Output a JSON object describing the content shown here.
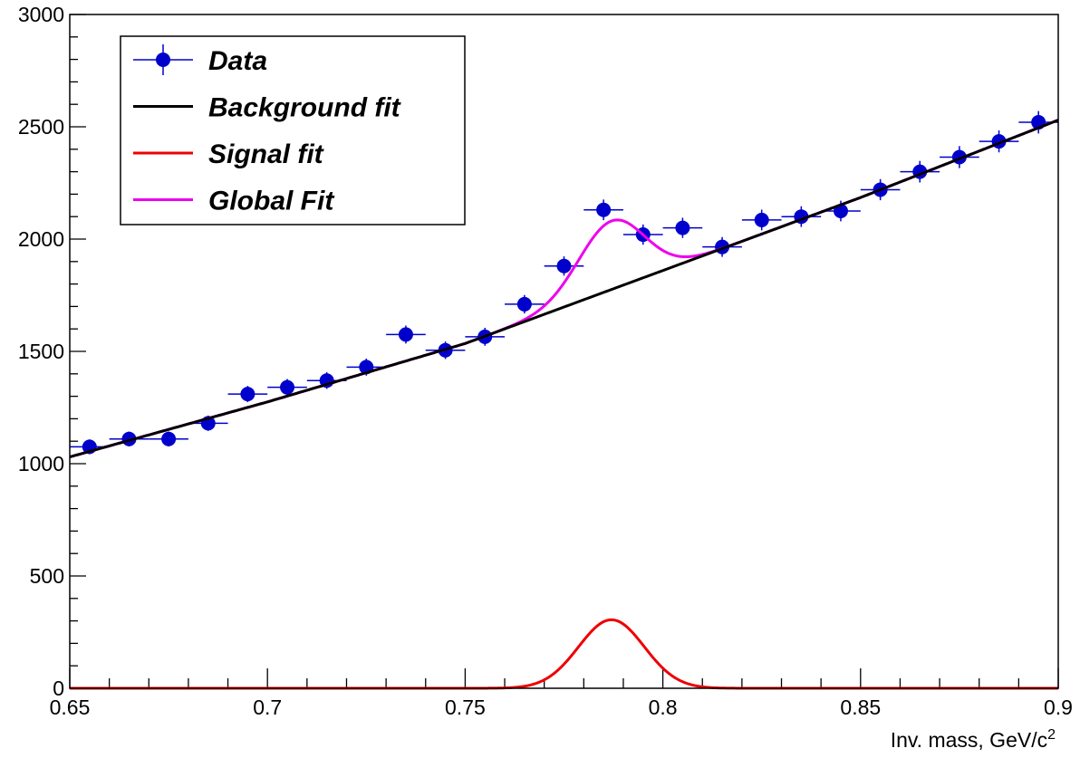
{
  "chart_data": {
    "type": "line",
    "xlabel": "Inv. mass, GeV/c",
    "xlabel_superscript": "2",
    "ylabel": "",
    "xlim": [
      0.65,
      0.9
    ],
    "ylim": [
      0,
      3000
    ],
    "x_ticks": [
      "0.65",
      "0.7",
      "0.75",
      "0.8",
      "0.85",
      "0.9"
    ],
    "y_ticks": [
      "0",
      "500",
      "1000",
      "1500",
      "2000",
      "2500",
      "3000"
    ],
    "grid": false,
    "legend_position": "top-left",
    "bin_width": 0.01,
    "series": [
      {
        "name": "Data",
        "kind": "points",
        "color": "#0000cc",
        "x": [
          0.655,
          0.665,
          0.675,
          0.685,
          0.695,
          0.705,
          0.715,
          0.725,
          0.735,
          0.745,
          0.755,
          0.765,
          0.775,
          0.785,
          0.795,
          0.805,
          0.815,
          0.825,
          0.835,
          0.845,
          0.855,
          0.865,
          0.875,
          0.885,
          0.895
        ],
        "y": [
          1075,
          1110,
          1110,
          1180,
          1310,
          1340,
          1370,
          1430,
          1575,
          1505,
          1565,
          1710,
          1880,
          2130,
          2020,
          2050,
          1965,
          2085,
          2100,
          2125,
          2220,
          2300,
          2365,
          2435,
          2520
        ],
        "yerr": [
          33,
          33,
          33,
          34,
          36,
          37,
          37,
          38,
          40,
          39,
          40,
          41,
          43,
          46,
          45,
          45,
          44,
          46,
          46,
          46,
          47,
          48,
          49,
          49,
          50
        ]
      },
      {
        "name": "Background fit",
        "kind": "curve",
        "color": "#000000",
        "x": [
          0.65,
          0.7,
          0.75,
          0.8,
          0.85,
          0.9
        ],
        "y": [
          1030,
          1275,
          1535,
          1860,
          2185,
          2530
        ]
      },
      {
        "name": "Signal fit",
        "kind": "gaussian",
        "color": "#ee0000",
        "amplitude": 305,
        "mean": 0.787,
        "sigma": 0.0083
      },
      {
        "name": "Global Fit",
        "kind": "sum",
        "color": "#ee00ee",
        "components": [
          "Background fit",
          "Signal fit"
        ]
      }
    ]
  }
}
